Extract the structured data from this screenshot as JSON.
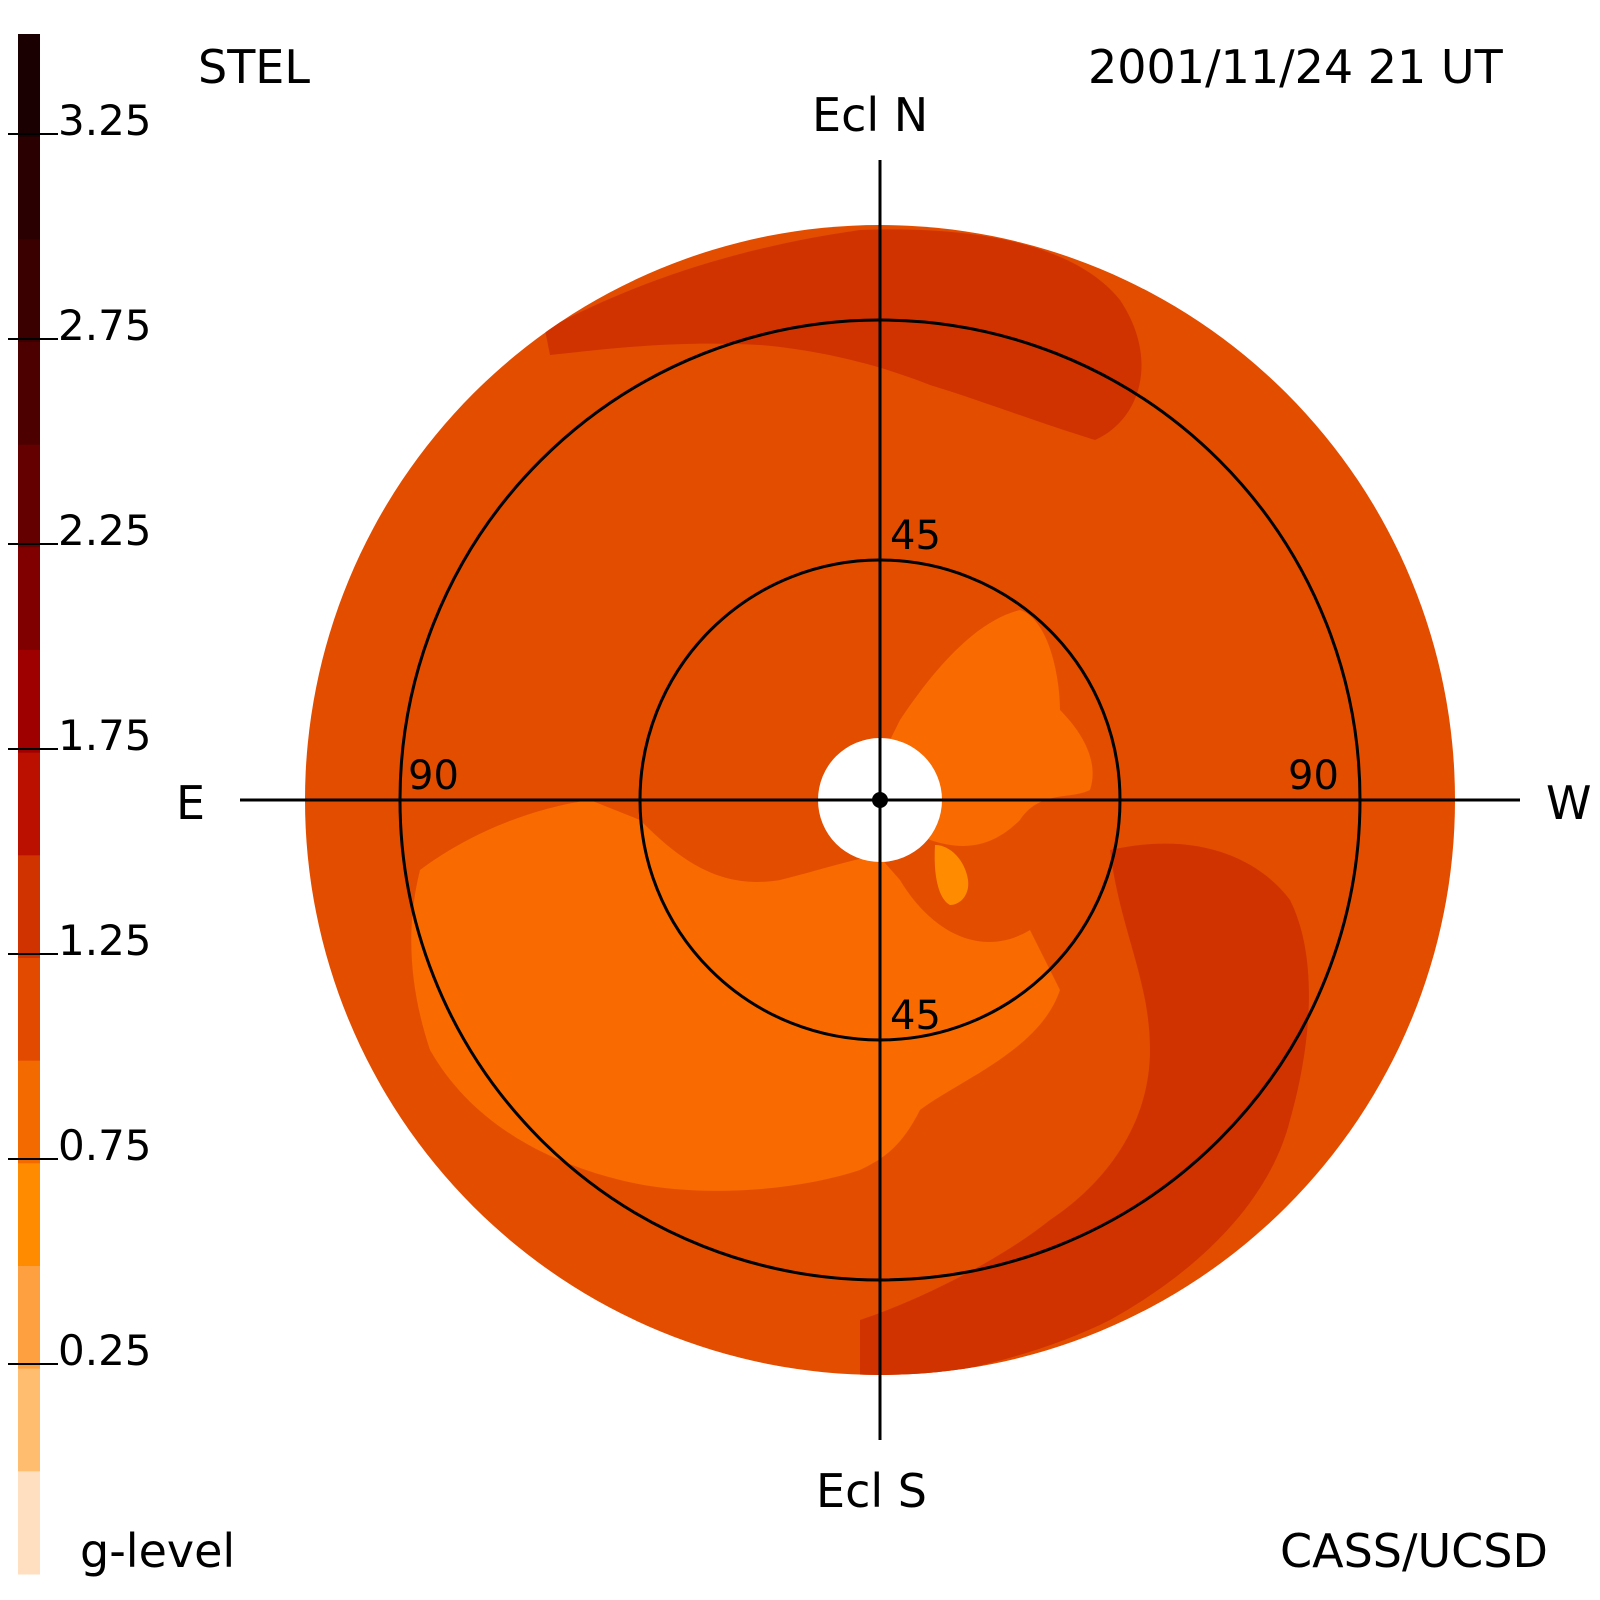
{
  "header": {
    "instrument": "STEL",
    "timestamp": "2001/11/24 21 UT",
    "credit": "CASS/UCSD"
  },
  "colorbar": {
    "label": "g-level",
    "ticks": [
      "3.25",
      "2.75",
      "2.25",
      "1.75",
      "1.25",
      "0.75",
      "0.25"
    ],
    "band_colors_top_to_bottom": [
      "#1a0000",
      "#2a0000",
      "#3a0000",
      "#4d0000",
      "#650000",
      "#800000",
      "#9e0000",
      "#bb1000",
      "#d03300",
      "#e24a00",
      "#f26a00",
      "#ff8c00",
      "#ffa040",
      "#ffbd70",
      "#ffdfbf"
    ]
  },
  "sky_map": {
    "directions": {
      "north": "Ecl N",
      "south": "Ecl S",
      "east": "E",
      "west": "W"
    },
    "elongation_labels": {
      "inner_top": "45",
      "inner_bottom": "45",
      "outer_left": "90",
      "outer_right": "90"
    },
    "colors": {
      "base": "#e34d00",
      "low": "#f96a00",
      "lower": "#ff8c00",
      "high": "#d03300"
    },
    "gridlines": "on"
  }
}
